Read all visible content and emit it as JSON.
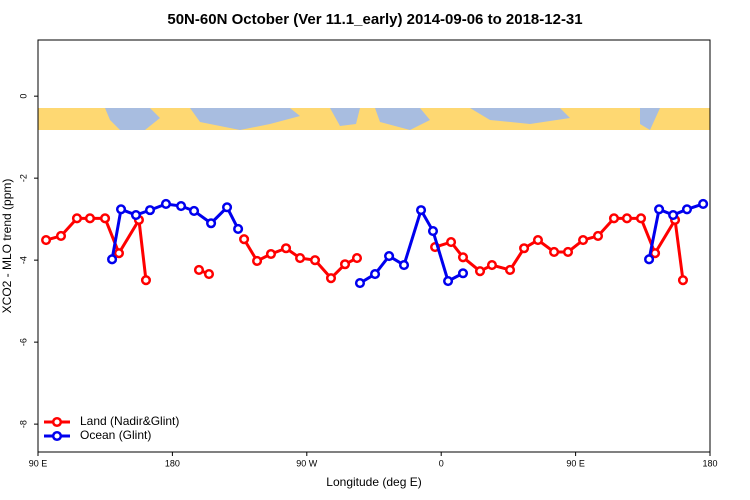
{
  "chart_data": {
    "type": "line",
    "title": "50N-60N October (Ver 11.1_early)   2014-09-06 to 2018-12-31",
    "x_label": "Longitude (deg E)",
    "y_label": "XCO2 - MLO trend (ppm)",
    "xlim": [
      90,
      540
    ],
    "xticks": [
      {
        "value": 90,
        "label": "90 E"
      },
      {
        "value": 180,
        "label": "180"
      },
      {
        "value": 270,
        "label": "90 W"
      },
      {
        "value": 360,
        "label": "0"
      },
      {
        "value": 450,
        "label": "90 E"
      },
      {
        "value": 540,
        "label": "180"
      }
    ],
    "ylim": [
      -8.68,
      1.37
    ],
    "yticks": [
      0,
      -2,
      -4,
      -6,
      -8
    ],
    "legend": "bottom-left",
    "series": [
      {
        "name": "Land (Nadir&Glint)",
        "color": "#ff0000",
        "x": [
          95.4,
          105.4,
          116.1,
          124.8,
          134.9,
          144.2,
          157.6,
          162.3,
          null,
          197.8,
          204.5,
          null,
          228.0,
          236.7,
          246.0,
          256.1,
          265.5,
          275.5,
          286.2,
          295.6,
          303.6,
          null,
          355.9,
          366.6,
          374.6,
          386.0,
          394.0,
          406.1,
          415.5,
          424.8,
          435.6,
          444.9,
          455.0,
          465.0,
          475.7,
          484.4,
          493.8,
          503.2,
          516.6,
          521.9
        ],
        "values": [
          -3.51,
          -3.41,
          -2.98,
          -2.98,
          -2.98,
          -3.83,
          -3.02,
          -4.49,
          null,
          -4.24,
          -4.34,
          null,
          -3.49,
          -4.02,
          -3.85,
          -3.71,
          -3.95,
          -4.0,
          -4.44,
          -4.1,
          -3.95,
          null,
          -3.68,
          -3.56,
          -3.93,
          -4.27,
          -4.12,
          -4.24,
          -3.71,
          -3.51,
          -3.8,
          -3.8,
          -3.51,
          -3.41,
          -2.98,
          -2.98,
          -2.98,
          -3.83,
          -3.02,
          -4.49
        ]
      },
      {
        "name": "Ocean (Glint)",
        "color": "#0000ee",
        "x": [
          139.6,
          145.6,
          155.6,
          165.0,
          175.7,
          185.8,
          194.5,
          205.9,
          216.6,
          224.0,
          null,
          305.6,
          315.7,
          325.1,
          335.1,
          346.5,
          354.5,
          364.6,
          374.6,
          null,
          499.2,
          505.9,
          515.3,
          524.6,
          535.4
        ],
        "values": [
          -3.98,
          -2.76,
          -2.9,
          -2.78,
          -2.63,
          -2.68,
          -2.8,
          -3.1,
          -2.71,
          -3.24,
          null,
          -4.56,
          -4.34,
          -3.9,
          -4.12,
          -2.78,
          -3.29,
          -4.51,
          -4.32,
          null,
          -3.98,
          -2.76,
          -2.9,
          -2.76,
          -2.63
        ]
      }
    ]
  }
}
